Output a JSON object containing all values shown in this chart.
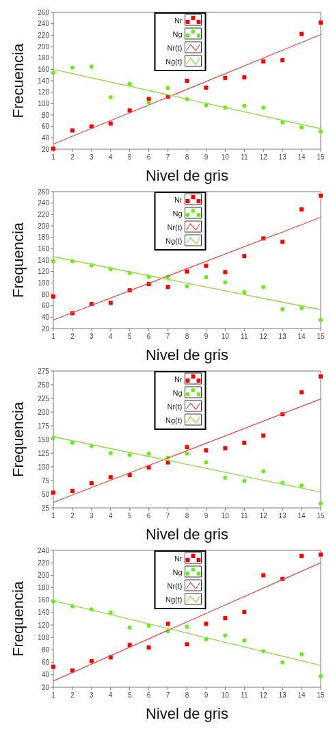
{
  "chart_data": [
    {
      "type": "scatter",
      "ylabel": "Frecuencia",
      "xlabel": "Nivel de gris",
      "xlim": [
        1,
        15
      ],
      "xticks": [
        1,
        2,
        3,
        4,
        5,
        6,
        7,
        8,
        9,
        10,
        11,
        12,
        13,
        14,
        15
      ],
      "ylim": [
        20,
        260
      ],
      "yticks": [
        20,
        40,
        60,
        80,
        100,
        120,
        140,
        160,
        180,
        200,
        220,
        240,
        260
      ],
      "grid": false,
      "legend": "top",
      "series": [
        {
          "name": "Nr",
          "type": "scatter",
          "marker": "square",
          "color": "#ff0000",
          "x": [
            1,
            2,
            3,
            4,
            5,
            6,
            7,
            8,
            9,
            10,
            11,
            12,
            13,
            14,
            15
          ],
          "values": [
            21,
            53,
            60,
            65,
            88,
            108,
            112,
            140,
            128,
            145,
            146,
            174,
            176,
            222,
            242
          ]
        },
        {
          "name": "Ng",
          "type": "scatter",
          "marker": "circle",
          "color": "#66ee11",
          "x": [
            1,
            2,
            3,
            4,
            5,
            6,
            7,
            8,
            9,
            10,
            11,
            12,
            13,
            14,
            15
          ],
          "values": [
            154,
            163,
            165,
            111,
            135,
            102,
            127,
            108,
            97,
            93,
            96,
            93,
            67,
            58,
            51
          ]
        },
        {
          "name": "Nr(t)",
          "type": "line",
          "color": "#ee4444",
          "x": [
            1,
            15
          ],
          "values": [
            29,
            221
          ]
        },
        {
          "name": "Ng(t)",
          "type": "line",
          "color": "#88dd33",
          "x": [
            1,
            15
          ],
          "values": [
            160,
            56
          ]
        }
      ]
    },
    {
      "type": "scatter",
      "ylabel": "Frequencia",
      "xlabel": "Nivel de gris",
      "xlim": [
        1,
        15
      ],
      "xticks": [
        1,
        2,
        3,
        4,
        5,
        6,
        7,
        8,
        9,
        10,
        11,
        12,
        13,
        14,
        15
      ],
      "ylim": [
        20,
        260
      ],
      "yticks": [
        20,
        40,
        60,
        80,
        100,
        120,
        140,
        160,
        180,
        200,
        220,
        240,
        260
      ],
      "grid": false,
      "legend": "top",
      "series": [
        {
          "name": "Nr",
          "type": "scatter",
          "marker": "square",
          "color": "#ff0000",
          "x": [
            1,
            2,
            3,
            4,
            5,
            6,
            7,
            8,
            9,
            10,
            11,
            12,
            13,
            14,
            15
          ],
          "values": [
            76,
            47,
            63,
            65,
            87,
            98,
            93,
            120,
            130,
            119,
            147,
            178,
            172,
            229,
            253
          ]
        },
        {
          "name": "Ng",
          "type": "scatter",
          "marker": "circle",
          "color": "#66ee11",
          "x": [
            1,
            2,
            3,
            4,
            5,
            6,
            7,
            8,
            9,
            10,
            11,
            12,
            13,
            14,
            15
          ],
          "values": [
            138,
            138,
            131,
            124,
            117,
            111,
            111,
            94,
            110,
            101,
            84,
            93,
            54,
            56,
            35
          ]
        },
        {
          "name": "Nr(t)",
          "type": "line",
          "color": "#ee4444",
          "x": [
            1,
            15
          ],
          "values": [
            35,
            215
          ]
        },
        {
          "name": "Ng(t)",
          "type": "line",
          "color": "#88dd33",
          "x": [
            1,
            15
          ],
          "values": [
            146,
            53
          ]
        }
      ]
    },
    {
      "type": "scatter",
      "ylabel": "Frequencia",
      "xlabel": "Nivel de gris",
      "xlim": [
        1,
        15
      ],
      "xticks": [
        1,
        2,
        3,
        4,
        5,
        6,
        7,
        8,
        9,
        10,
        11,
        12,
        13,
        14,
        15
      ],
      "ylim": [
        25,
        275
      ],
      "yticks": [
        25,
        50,
        75,
        100,
        125,
        150,
        175,
        200,
        225,
        250,
        275
      ],
      "grid": false,
      "legend": "top",
      "series": [
        {
          "name": "Nr",
          "type": "scatter",
          "marker": "square",
          "color": "#ff0000",
          "x": [
            1,
            2,
            3,
            4,
            5,
            6,
            7,
            8,
            9,
            10,
            11,
            12,
            13,
            14,
            15
          ],
          "values": [
            53,
            56,
            70,
            81,
            85,
            99,
            108,
            136,
            130,
            134,
            144,
            157,
            196,
            236,
            265
          ]
        },
        {
          "name": "Ng",
          "type": "scatter",
          "marker": "circle",
          "color": "#66ee11",
          "x": [
            1,
            2,
            3,
            4,
            5,
            6,
            7,
            8,
            9,
            10,
            11,
            12,
            13,
            14,
            15
          ],
          "values": [
            153,
            144,
            138,
            125,
            122,
            124,
            117,
            124,
            108,
            80,
            74,
            92,
            71,
            66,
            33
          ]
        },
        {
          "name": "Nr(t)",
          "type": "line",
          "color": "#ee4444",
          "x": [
            1,
            15
          ],
          "values": [
            35,
            224
          ]
        },
        {
          "name": "Ng(t)",
          "type": "line",
          "color": "#88dd33",
          "x": [
            1,
            15
          ],
          "values": [
            155,
            54
          ]
        }
      ]
    },
    {
      "type": "scatter",
      "ylabel": "Frequencia",
      "xlabel": "Nivel de gris",
      "xlim": [
        1,
        15
      ],
      "xticks": [
        1,
        2,
        3,
        4,
        5,
        6,
        7,
        8,
        9,
        10,
        11,
        12,
        13,
        14,
        15
      ],
      "ylim": [
        20,
        240
      ],
      "yticks": [
        20,
        40,
        60,
        80,
        100,
        120,
        140,
        160,
        180,
        200,
        220,
        240
      ],
      "grid": false,
      "legend": "top",
      "series": [
        {
          "name": "Nr",
          "type": "scatter",
          "marker": "square",
          "color": "#ff0000",
          "x": [
            1,
            2,
            3,
            4,
            5,
            6,
            7,
            8,
            9,
            10,
            11,
            12,
            13,
            14,
            15
          ],
          "values": [
            53,
            47,
            62,
            68,
            88,
            84,
            122,
            89,
            122,
            131,
            141,
            200,
            194,
            231,
            233
          ]
        },
        {
          "name": "Ng",
          "type": "scatter",
          "marker": "circle",
          "color": "#66ee11",
          "x": [
            1,
            2,
            3,
            4,
            5,
            6,
            7,
            8,
            9,
            10,
            11,
            12,
            13,
            14,
            15
          ],
          "values": [
            158,
            150,
            145,
            140,
            116,
            119,
            110,
            117,
            97,
            103,
            95,
            78,
            60,
            73,
            38
          ]
        },
        {
          "name": "Nr(t)",
          "type": "line",
          "color": "#ee4444",
          "x": [
            1,
            15
          ],
          "values": [
            30,
            220
          ]
        },
        {
          "name": "Ng(t)",
          "type": "line",
          "color": "#88dd33",
          "x": [
            1,
            15
          ],
          "values": [
            159,
            55
          ]
        }
      ]
    }
  ]
}
